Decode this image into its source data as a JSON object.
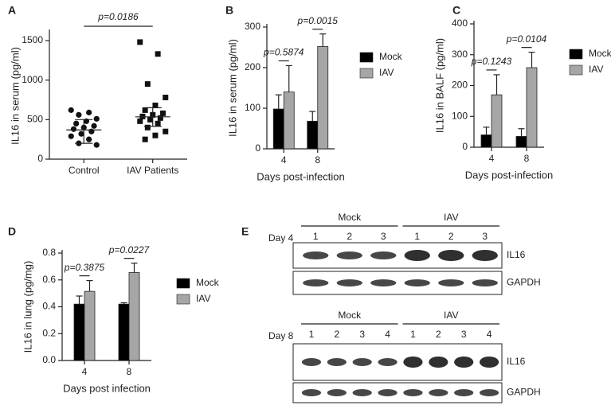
{
  "chart_data": [
    {
      "type": "scatter",
      "label": "A",
      "ylabel": "IL16 in serum (pg/ml)",
      "categories": [
        "Control",
        "IAV Patients"
      ],
      "ylim": [
        0,
        1600
      ],
      "yticks": [
        0,
        500,
        1000,
        1500
      ],
      "p_value": "p=0.0186",
      "series": [
        {
          "marker": "circle",
          "color": "#111111",
          "values": [
            620,
            590,
            560,
            510,
            480,
            450,
            420,
            400,
            380,
            350,
            320,
            290,
            250,
            200,
            180
          ],
          "center": 370,
          "whisker": [
            200,
            500
          ]
        },
        {
          "marker": "square",
          "color": "#111111",
          "values": [
            1480,
            1330,
            950,
            780,
            680,
            620,
            580,
            560,
            540,
            520,
            500,
            480,
            450,
            400,
            350,
            300,
            250
          ],
          "center": 535,
          "whisker": [
            415,
            650
          ]
        }
      ]
    },
    {
      "type": "bar",
      "label": "B",
      "ylabel": "IL16 in serum (pg/ml)",
      "xlabel": "Days post-infection",
      "categories": [
        "4",
        "8"
      ],
      "ylim": [
        0,
        300
      ],
      "yticks": [
        0,
        100,
        200,
        300
      ],
      "p_values": [
        "p=0.5874",
        "p=0.0015"
      ],
      "series": [
        {
          "name": "Mock",
          "color": "#000000",
          "values": [
            98,
            68
          ],
          "errors": [
            35,
            24
          ]
        },
        {
          "name": "IAV",
          "color": "#a6a6a6",
          "values": [
            140,
            252
          ],
          "errors": [
            65,
            31
          ]
        }
      ]
    },
    {
      "type": "bar",
      "label": "C",
      "ylabel": "IL16 in BALF (pg/ml)",
      "xlabel": "Days post-infection",
      "categories": [
        "4",
        "8"
      ],
      "ylim": [
        0,
        400
      ],
      "yticks": [
        0,
        100,
        200,
        300,
        400
      ],
      "p_values": [
        "p=0.1243",
        "p=0.0104"
      ],
      "series": [
        {
          "name": "Mock",
          "color": "#000000",
          "values": [
            40,
            35
          ],
          "errors": [
            25,
            25
          ]
        },
        {
          "name": "IAV",
          "color": "#a6a6a6",
          "values": [
            170,
            258
          ],
          "errors": [
            65,
            50
          ]
        }
      ]
    },
    {
      "type": "bar",
      "label": "D",
      "ylabel": "IL16 in lung (pg/mg)",
      "xlabel": "Days post infection",
      "categories": [
        "4",
        "8"
      ],
      "ylim": [
        0,
        0.8
      ],
      "yticks": [
        {
          "value": 0,
          "label": "0.0"
        },
        0.2,
        0.4,
        0.6,
        0.8
      ],
      "p_values": [
        "p=0.3875",
        "p=0.0227"
      ],
      "series": [
        {
          "name": "Mock",
          "color": "#000000",
          "values": [
            0.42,
            0.42
          ],
          "errors": [
            0.06,
            0.01
          ]
        },
        {
          "name": "IAV",
          "color": "#a6a6a6",
          "values": [
            0.515,
            0.655
          ],
          "errors": [
            0.08,
            0.07
          ]
        }
      ]
    }
  ],
  "blot_panel": {
    "label": "E",
    "blots": [
      {
        "day": "Day 4",
        "groups": [
          {
            "name": "Mock",
            "lanes": [
              "1",
              "2",
              "3"
            ]
          },
          {
            "name": "IAV",
            "lanes": [
              "1",
              "2",
              "3"
            ]
          }
        ],
        "bands": [
          "IL16",
          "GAPDH"
        ]
      },
      {
        "day": "Day 8",
        "groups": [
          {
            "name": "Mock",
            "lanes": [
              "1",
              "2",
              "3",
              "4"
            ]
          },
          {
            "name": "IAV",
            "lanes": [
              "1",
              "2",
              "3",
              "4"
            ]
          }
        ],
        "bands": [
          "IL16",
          "GAPDH"
        ]
      }
    ]
  }
}
